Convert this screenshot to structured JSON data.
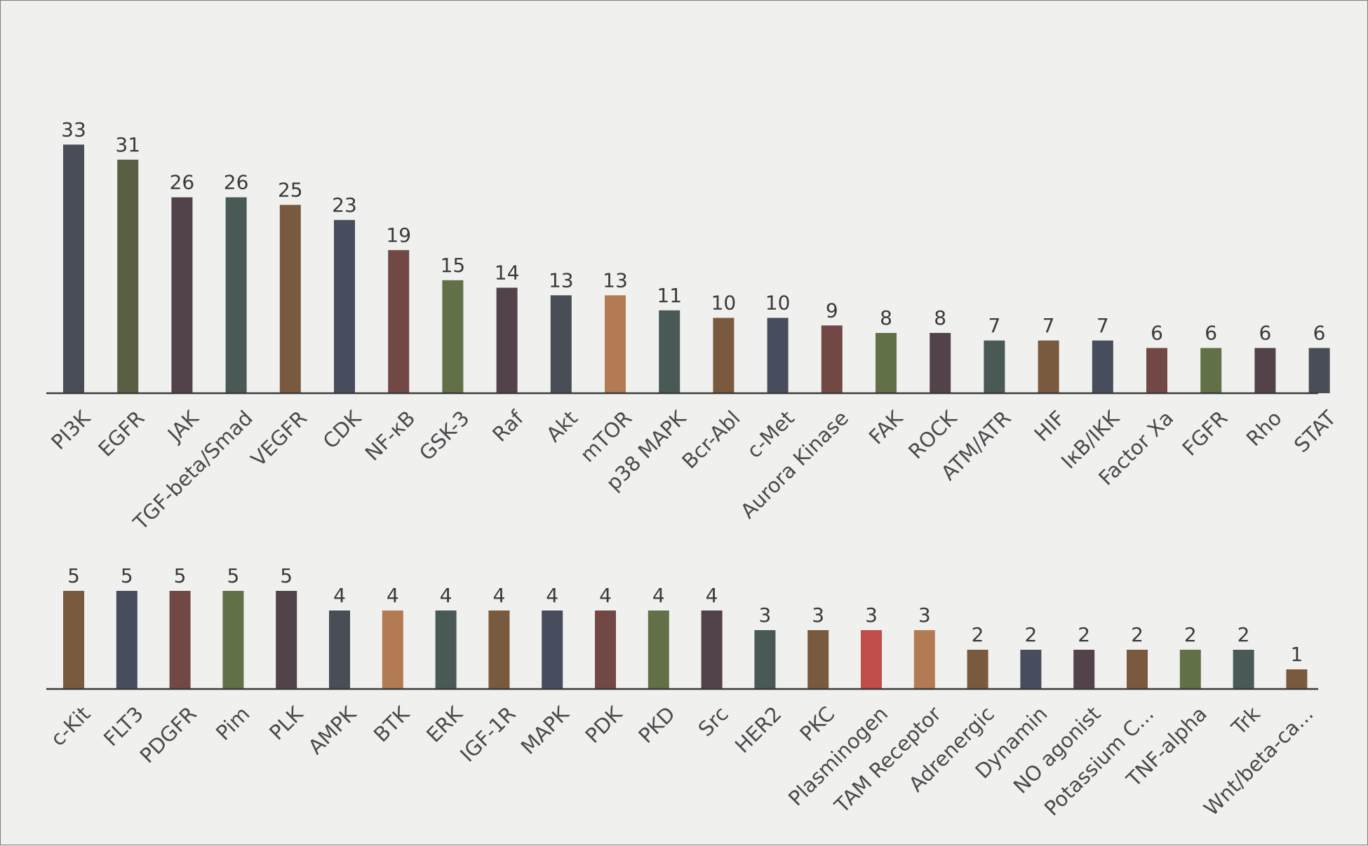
{
  "chart_data": [
    {
      "type": "bar",
      "categories": [
        "PI3K",
        "EGFR",
        "JAK",
        "TGF-beta/Smad",
        "VEGFR",
        "CDK",
        "NF-κB",
        "GSK-3",
        "Raf",
        "Akt",
        "mTOR",
        "p38 MAPK",
        "Bcr-Abl",
        "c-Met",
        "Aurora Kinase",
        "FAK",
        "ROCK",
        "ATM/ATR",
        "HIF",
        "IκB/IKK",
        "Factor Xa",
        "FGFR",
        "Rho",
        "STAT"
      ],
      "values": [
        33,
        31,
        26,
        26,
        25,
        23,
        19,
        15,
        14,
        13,
        13,
        11,
        10,
        10,
        9,
        8,
        8,
        7,
        7,
        7,
        6,
        6,
        6,
        6
      ],
      "colors": [
        "#484d56",
        "#585f42",
        "#524249",
        "#485956",
        "#7a5a3e",
        "#474d5c",
        "#724844",
        "#627048",
        "#524249",
        "#484d56",
        "#b37b54",
        "#485956",
        "#7a5a3e",
        "#474d5c",
        "#724844",
        "#627048",
        "#524249",
        "#485956",
        "#7a5a3e",
        "#474d5c",
        "#724844",
        "#627048",
        "#524249",
        "#484d56"
      ],
      "title": "",
      "xlabel": "",
      "ylabel": "",
      "ylim": [
        0,
        33
      ],
      "grid": false,
      "legend": "none"
    },
    {
      "type": "bar",
      "categories": [
        "c-Kit",
        "FLT3",
        "PDGFR",
        "Pim",
        "PLK",
        "AMPK",
        "BTK",
        "ERK",
        "IGF-1R",
        "MAPK",
        "PDK",
        "PKD",
        "Src",
        "HER2",
        "PKC",
        "Plasminogen",
        "TAM Receptor",
        "Adrenergic",
        "Dynamin",
        "NO agonist",
        "Potassium C...",
        "TNF-alpha",
        "Trk",
        "Wnt/beta-ca..."
      ],
      "values": [
        5,
        5,
        5,
        5,
        5,
        4,
        4,
        4,
        4,
        4,
        4,
        4,
        4,
        3,
        3,
        3,
        3,
        2,
        2,
        2,
        2,
        2,
        2,
        1
      ],
      "colors": [
        "#7a5a3e",
        "#474d5c",
        "#724844",
        "#627048",
        "#524249",
        "#484d56",
        "#b37b54",
        "#485956",
        "#7a5a3e",
        "#474d5c",
        "#724844",
        "#627048",
        "#524249",
        "#485956",
        "#7a5a3e",
        "#c04d4a",
        "#b37b54",
        "#7a5a3e",
        "#474d5c",
        "#524249",
        "#7a5a3e",
        "#627048",
        "#485956",
        "#7a5a3e"
      ],
      "title": "",
      "xlabel": "",
      "ylabel": "",
      "ylim": [
        0,
        5
      ],
      "grid": false,
      "legend": "none"
    }
  ]
}
